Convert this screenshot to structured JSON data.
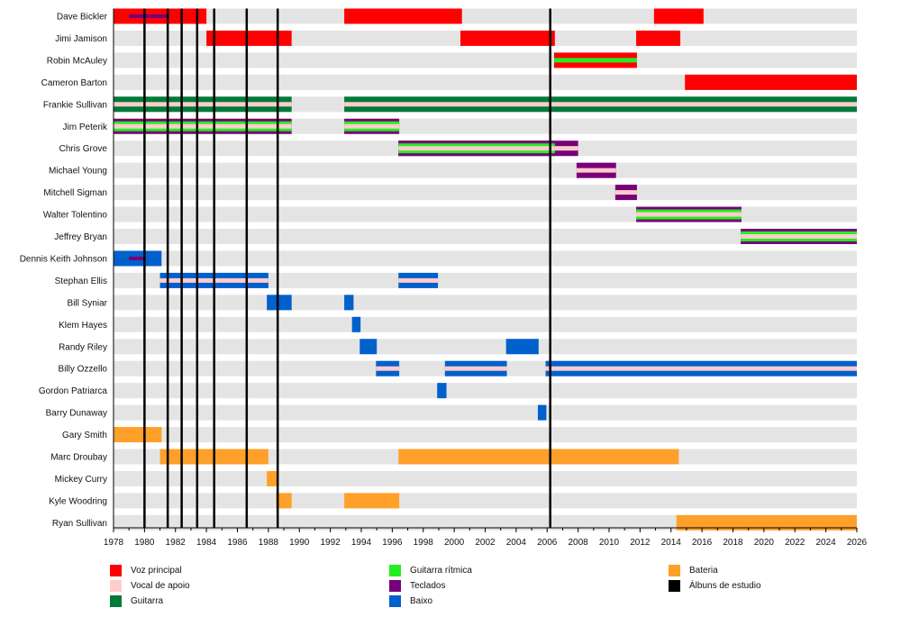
{
  "chart_data": {
    "type": "timeline",
    "title": "",
    "xlabel": "",
    "ylabel": "",
    "xlim": [
      1978,
      2026
    ],
    "x_ticks": [
      1978,
      1980,
      1982,
      1984,
      1986,
      1988,
      1990,
      1992,
      1994,
      1996,
      1998,
      2000,
      2002,
      2004,
      2006,
      2008,
      2010,
      2012,
      2014,
      2016,
      2018,
      2020,
      2022,
      2024,
      2026
    ],
    "minor_tick_step": 1,
    "grid": false,
    "row_background": "#e4e4e4",
    "roles": {
      "vocal": {
        "label": "Voz principal",
        "color": "#ff0000"
      },
      "backing": {
        "label": "Vocal de apoio",
        "color": "#ffcccc"
      },
      "guitar": {
        "label": "Guitarra",
        "color": "#007a38"
      },
      "rhythm": {
        "label": "Guitarra rítmica",
        "color": "#22ee22"
      },
      "keys": {
        "label": "Teclados",
        "color": "#780078"
      },
      "bass": {
        "label": "Baixo",
        "color": "#0060cc"
      },
      "drums": {
        "label": "Bateria",
        "color": "#ffa02a"
      },
      "album": {
        "label": "Álbuns de estudio",
        "color": "#000000"
      }
    },
    "legend_order": [
      [
        "vocal",
        "backing",
        "guitar"
      ],
      [
        "rhythm",
        "keys",
        "bass"
      ],
      [
        "drums",
        "album"
      ]
    ],
    "albums": [
      1980.0,
      1981.5,
      1982.4,
      1983.4,
      1984.5,
      1986.6,
      1988.6,
      2006.2
    ],
    "members": [
      {
        "name": "Dave Bickler",
        "bars": [
          {
            "from": 1978.0,
            "to": 1984.0,
            "main": "vocal"
          },
          {
            "from": 1992.9,
            "to": 2000.5,
            "main": "vocal"
          },
          {
            "from": 2012.9,
            "to": 2016.1,
            "main": "vocal"
          },
          {
            "from": 1979.0,
            "to": 1981.5,
            "main": "keys",
            "style": "thin"
          }
        ]
      },
      {
        "name": "Jimi Jamison",
        "bars": [
          {
            "from": 1984.0,
            "to": 1989.5,
            "main": "vocal"
          },
          {
            "from": 2000.4,
            "to": 2006.5,
            "main": "vocal"
          },
          {
            "from": 2011.75,
            "to": 2014.6,
            "main": "vocal"
          }
        ]
      },
      {
        "name": "Robin McAuley",
        "bars": [
          {
            "from": 2006.45,
            "to": 2011.8,
            "main": "vocal",
            "inner": "rhythm"
          }
        ]
      },
      {
        "name": "Cameron Barton",
        "bars": [
          {
            "from": 2014.9,
            "to": 2026.0,
            "main": "vocal"
          }
        ]
      },
      {
        "name": "Frankie Sullivan",
        "bars": [
          {
            "from": 1978.0,
            "to": 1989.5,
            "main": "guitar",
            "inner": "backing"
          },
          {
            "from": 1992.9,
            "to": 2026.0,
            "main": "guitar",
            "inner": "backing"
          }
        ]
      },
      {
        "name": "Jim Peterik",
        "bars": [
          {
            "from": 1978.0,
            "to": 1989.5,
            "main": "keys",
            "mid": "rhythm",
            "inner": "backing"
          },
          {
            "from": 1992.9,
            "to": 1996.45,
            "main": "keys",
            "mid": "rhythm",
            "inner": "backing"
          }
        ]
      },
      {
        "name": "Chris Grove",
        "bars": [
          {
            "from": 1996.4,
            "to": 2008.0,
            "main": "keys",
            "inner": "backing"
          },
          {
            "from": 1996.4,
            "to": 2006.5,
            "main": "keys",
            "mid": "rhythm",
            "inner": "backing"
          }
        ]
      },
      {
        "name": "Michael Young",
        "bars": [
          {
            "from": 2007.9,
            "to": 2010.45,
            "main": "keys",
            "inner": "backing"
          }
        ]
      },
      {
        "name": "Mitchell Sigman",
        "bars": [
          {
            "from": 2010.4,
            "to": 2011.8,
            "main": "keys",
            "inner": "backing"
          }
        ]
      },
      {
        "name": "Walter Tolentino",
        "bars": [
          {
            "from": 2011.75,
            "to": 2018.55,
            "main": "keys",
            "mid": "rhythm",
            "inner": "backing"
          }
        ]
      },
      {
        "name": "Jeffrey Bryan",
        "bars": [
          {
            "from": 2018.5,
            "to": 2026.0,
            "main": "keys",
            "mid": "rhythm",
            "inner": "backing"
          }
        ]
      },
      {
        "name": "Dennis Keith Johnson",
        "bars": [
          {
            "from": 1978.0,
            "to": 1981.1,
            "main": "bass"
          },
          {
            "from": 1979.0,
            "to": 1980.05,
            "main": "keys",
            "style": "thin"
          }
        ]
      },
      {
        "name": "Stephan Ellis",
        "bars": [
          {
            "from": 1981.0,
            "to": 1988.0,
            "main": "bass",
            "inner": "backing"
          },
          {
            "from": 1996.4,
            "to": 1998.95,
            "main": "bass",
            "inner": "backing"
          }
        ]
      },
      {
        "name": "Bill Syniar",
        "bars": [
          {
            "from": 1987.9,
            "to": 1989.5,
            "main": "bass"
          },
          {
            "from": 1992.9,
            "to": 1993.5,
            "main": "bass"
          }
        ]
      },
      {
        "name": "Klem Hayes",
        "bars": [
          {
            "from": 1993.4,
            "to": 1993.95,
            "main": "bass"
          }
        ]
      },
      {
        "name": "Randy Riley",
        "bars": [
          {
            "from": 1993.9,
            "to": 1995.0,
            "main": "bass"
          },
          {
            "from": 2003.35,
            "to": 2005.45,
            "main": "bass"
          }
        ]
      },
      {
        "name": "Billy Ozzello",
        "bars": [
          {
            "from": 1994.95,
            "to": 1996.45,
            "main": "bass",
            "inner": "backing"
          },
          {
            "from": 1999.4,
            "to": 2003.4,
            "main": "bass",
            "inner": "backing"
          },
          {
            "from": 2005.9,
            "to": 2026.0,
            "main": "bass",
            "inner": "backing"
          }
        ]
      },
      {
        "name": "Gordon Patriarca",
        "bars": [
          {
            "from": 1998.9,
            "to": 1999.5,
            "main": "bass"
          }
        ]
      },
      {
        "name": "Barry Dunaway",
        "bars": [
          {
            "from": 2005.4,
            "to": 2005.95,
            "main": "bass"
          }
        ]
      },
      {
        "name": "Gary Smith",
        "bars": [
          {
            "from": 1978.0,
            "to": 1981.1,
            "main": "drums"
          }
        ]
      },
      {
        "name": "Marc Droubay",
        "bars": [
          {
            "from": 1981.0,
            "to": 1988.0,
            "main": "drums"
          },
          {
            "from": 1996.4,
            "to": 2014.5,
            "main": "drums"
          }
        ]
      },
      {
        "name": "Mickey Curry",
        "bars": [
          {
            "from": 1987.9,
            "to": 1988.55,
            "main": "drums"
          }
        ]
      },
      {
        "name": "Kyle Woodring",
        "bars": [
          {
            "from": 1988.5,
            "to": 1989.5,
            "main": "drums"
          },
          {
            "from": 1992.9,
            "to": 1996.45,
            "main": "drums"
          }
        ]
      },
      {
        "name": "Ryan Sullivan",
        "bars": [
          {
            "from": 2014.35,
            "to": 2026.0,
            "main": "drums"
          }
        ]
      }
    ]
  }
}
